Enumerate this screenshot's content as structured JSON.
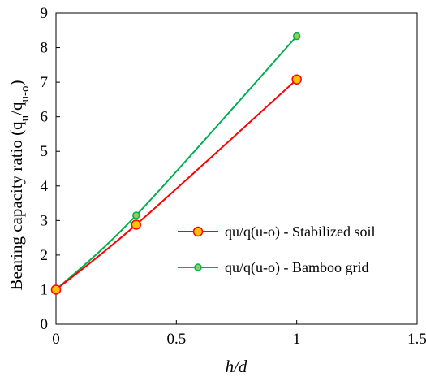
{
  "chart_data": {
    "type": "line",
    "xlabel": "h/d",
    "ylabel": {
      "main": "Bearing capacity ratio (q",
      "sub1": "u",
      "mid": "/q",
      "sub2": "u-o",
      "end": ")"
    },
    "xlim": [
      0,
      1.5
    ],
    "ylim": [
      0,
      9
    ],
    "xticks": [
      "0",
      "0.5",
      "1",
      "1.5"
    ],
    "yticks": [
      "0",
      "1",
      "2",
      "3",
      "4",
      "5",
      "6",
      "7",
      "8",
      "9"
    ],
    "grid": false,
    "legend_position": "right-middle",
    "series": [
      {
        "name": "qu/q(u-o) - Stabilized soil",
        "x": [
          0,
          0.333,
          1
        ],
        "y": [
          1.0,
          2.88,
          7.08
        ],
        "color": "#ff0000",
        "marker_fill": "#ffc000",
        "marker_edge": "#ff0000",
        "marker_size": "large"
      },
      {
        "name": "qu/q(u-o) - Bamboo grid",
        "x": [
          0,
          0.333,
          1
        ],
        "y": [
          1.0,
          3.15,
          8.33
        ],
        "color": "#00b050",
        "marker_fill": "#92d050",
        "marker_edge": "#00b050",
        "marker_size": "small"
      }
    ]
  }
}
